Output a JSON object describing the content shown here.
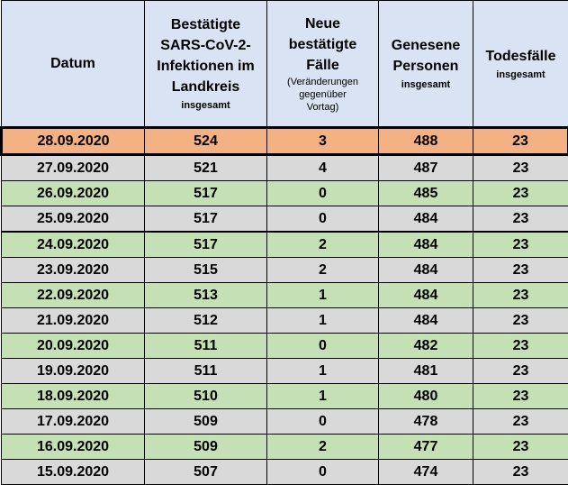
{
  "header": {
    "datum": "Datum",
    "infections_line1": "Bestätigte",
    "infections_line2": "SARS-CoV-2-",
    "infections_line3": "Infektionen im",
    "infections_line4": "Landkreis",
    "infections_sub": "insgesamt",
    "new_line1": "Neue",
    "new_line2": "bestätigte",
    "new_line3": "Fälle",
    "new_sub1": "(Veränderungen",
    "new_sub2": "gegenüber",
    "new_sub3": "Vortag)",
    "recovered_line1": "Genesene",
    "recovered_line2": "Personen",
    "recovered_sub": "insgesamt",
    "deaths_line1": "Todesfälle",
    "deaths_sub": "insgesamt"
  },
  "colors": {
    "header_bg": "#dae3f3",
    "highlight_bg": "#f4b183",
    "green_row": "#c5e0b4",
    "grey_row": "#d9d9d9"
  },
  "rows": [
    {
      "date": "28.09.2020",
      "infections": "524",
      "new": "3",
      "recovered": "488",
      "deaths": "23",
      "style": "highlight"
    },
    {
      "date": "27.09.2020",
      "infections": "521",
      "new": "4",
      "recovered": "487",
      "deaths": "23",
      "style": "grey"
    },
    {
      "date": "26.09.2020",
      "infections": "517",
      "new": "0",
      "recovered": "485",
      "deaths": "23",
      "style": "green"
    },
    {
      "date": "25.09.2020",
      "infections": "517",
      "new": "0",
      "recovered": "484",
      "deaths": "23",
      "style": "grey"
    },
    {
      "date": "24.09.2020",
      "infections": "517",
      "new": "2",
      "recovered": "484",
      "deaths": "23",
      "style": "green"
    },
    {
      "date": "23.09.2020",
      "infections": "515",
      "new": "2",
      "recovered": "484",
      "deaths": "23",
      "style": "grey"
    },
    {
      "date": "22.09.2020",
      "infections": "513",
      "new": "1",
      "recovered": "484",
      "deaths": "23",
      "style": "green"
    },
    {
      "date": "21.09.2020",
      "infections": "512",
      "new": "1",
      "recovered": "484",
      "deaths": "23",
      "style": "grey"
    },
    {
      "date": "20.09.2020",
      "infections": "511",
      "new": "0",
      "recovered": "482",
      "deaths": "23",
      "style": "green"
    },
    {
      "date": "19.09.2020",
      "infections": "511",
      "new": "1",
      "recovered": "481",
      "deaths": "23",
      "style": "grey"
    },
    {
      "date": "18.09.2020",
      "infections": "510",
      "new": "1",
      "recovered": "480",
      "deaths": "23",
      "style": "green"
    },
    {
      "date": "17.09.2020",
      "infections": "509",
      "new": "0",
      "recovered": "478",
      "deaths": "23",
      "style": "grey"
    },
    {
      "date": "16.09.2020",
      "infections": "509",
      "new": "2",
      "recovered": "477",
      "deaths": "23",
      "style": "green"
    },
    {
      "date": "15.09.2020",
      "infections": "507",
      "new": "0",
      "recovered": "474",
      "deaths": "23",
      "style": "grey"
    }
  ]
}
